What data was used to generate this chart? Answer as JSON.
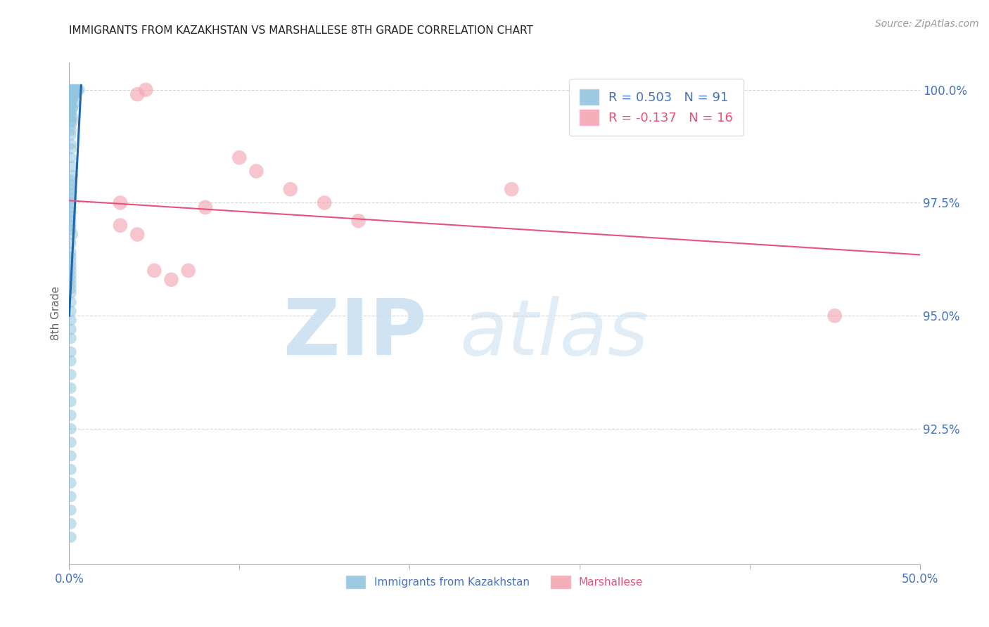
{
  "title": "IMMIGRANTS FROM KAZAKHSTAN VS MARSHALLESE 8TH GRADE CORRELATION CHART",
  "source": "Source: ZipAtlas.com",
  "ylabel": "8th Grade",
  "ytick_values": [
    1.0,
    0.975,
    0.95,
    0.925
  ],
  "ytick_labels": [
    "100.0%",
    "97.5%",
    "95.0%",
    "92.5%"
  ],
  "xtick_values": [
    0.0,
    0.5
  ],
  "xtick_labels": [
    "0.0%",
    "50.0%"
  ],
  "xlim": [
    0.0,
    0.5
  ],
  "ylim": [
    0.895,
    1.006
  ],
  "blue_color": "#92c5de",
  "pink_color": "#f4a7b2",
  "blue_line_color": "#2166ac",
  "pink_line_color": "#e8517a",
  "blue_label": "Immigrants from Kazakhstan",
  "pink_label": "Marshallese",
  "axis_label_color": "#4472c4",
  "grid_color": "#cccccc",
  "title_fontsize": 11,
  "legend_r1": "R = 0.503",
  "legend_n1": "N = 91",
  "legend_r2": "R = -0.137",
  "legend_n2": "N = 16",
  "blue_scatter_x": [
    0.001,
    0.001,
    0.001,
    0.002,
    0.002,
    0.002,
    0.002,
    0.003,
    0.003,
    0.003,
    0.003,
    0.004,
    0.004,
    0.004,
    0.005,
    0.005,
    0.006,
    0.001,
    0.001,
    0.002,
    0.002,
    0.003,
    0.003,
    0.004,
    0.001,
    0.001,
    0.002,
    0.002,
    0.003,
    0.001,
    0.001,
    0.002,
    0.002,
    0.001,
    0.001,
    0.002,
    0.001,
    0.001,
    0.002,
    0.001,
    0.001,
    0.001,
    0.001,
    0.001,
    0.001,
    0.002,
    0.002,
    0.001,
    0.001,
    0.001,
    0.001,
    0.001,
    0.001,
    0.001,
    0.001,
    0.001,
    0.001,
    0.001,
    0.001,
    0.002,
    0.001,
    0.001,
    0.001,
    0.001,
    0.001,
    0.001,
    0.001,
    0.001,
    0.001,
    0.001,
    0.001,
    0.001,
    0.001,
    0.001,
    0.001,
    0.001,
    0.001,
    0.001,
    0.001,
    0.001,
    0.001,
    0.001,
    0.001,
    0.001,
    0.001,
    0.001,
    0.001,
    0.001,
    0.001,
    0.001,
    0.001
  ],
  "blue_scatter_y": [
    1.0,
    1.0,
    1.0,
    1.0,
    1.0,
    1.0,
    1.0,
    1.0,
    1.0,
    1.0,
    1.0,
    1.0,
    1.0,
    1.0,
    1.0,
    1.0,
    1.0,
    0.999,
    0.999,
    0.999,
    0.999,
    0.999,
    0.999,
    0.999,
    0.998,
    0.998,
    0.998,
    0.998,
    0.997,
    0.997,
    0.997,
    0.996,
    0.996,
    0.995,
    0.995,
    0.994,
    0.994,
    0.993,
    0.993,
    0.992,
    0.991,
    0.99,
    0.988,
    0.987,
    0.985,
    0.983,
    0.981,
    0.98,
    0.979,
    0.978,
    0.977,
    0.976,
    0.975,
    0.974,
    0.973,
    0.972,
    0.971,
    0.97,
    0.969,
    0.968,
    0.966,
    0.964,
    0.963,
    0.962,
    0.961,
    0.96,
    0.959,
    0.958,
    0.957,
    0.956,
    0.955,
    0.953,
    0.951,
    0.949,
    0.947,
    0.945,
    0.942,
    0.94,
    0.937,
    0.934,
    0.931,
    0.928,
    0.925,
    0.922,
    0.919,
    0.916,
    0.913,
    0.91,
    0.907,
    0.904,
    0.901
  ],
  "pink_scatter_x": [
    0.04,
    0.045,
    0.1,
    0.11,
    0.13,
    0.15,
    0.17,
    0.03,
    0.08,
    0.26,
    0.03,
    0.04,
    0.05,
    0.06,
    0.07,
    0.45
  ],
  "pink_scatter_y": [
    0.999,
    1.0,
    0.985,
    0.982,
    0.978,
    0.975,
    0.971,
    0.975,
    0.974,
    0.978,
    0.97,
    0.968,
    0.96,
    0.958,
    0.96,
    0.95
  ],
  "blue_trendline_x": [
    0.0,
    0.007
  ],
  "blue_trendline_y": [
    0.95,
    1.001
  ],
  "pink_trendline_x": [
    0.0,
    0.5
  ],
  "pink_trendline_y": [
    0.9755,
    0.9635
  ]
}
